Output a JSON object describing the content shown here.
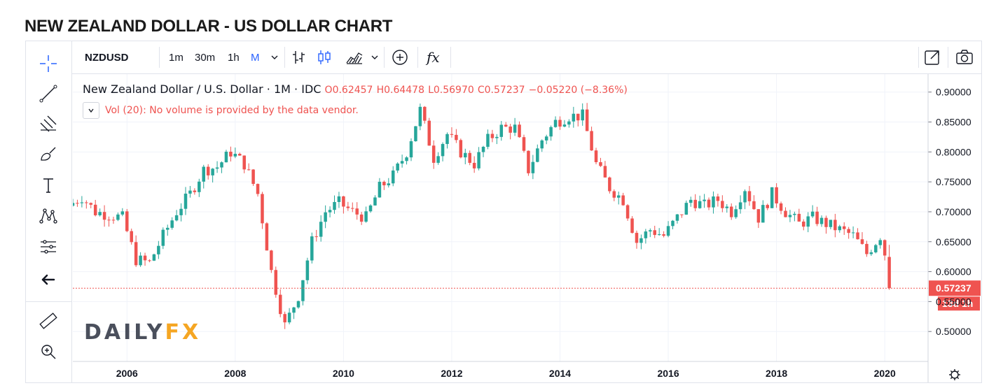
{
  "page": {
    "title": "NEW ZEALAND DOLLAR - US DOLLAR CHART"
  },
  "toolbar": {
    "symbol": "NZDUSD",
    "intervals": [
      "1m",
      "30m",
      "1h",
      "M"
    ],
    "active_interval": "M",
    "indicator_icon": "fx"
  },
  "legend": {
    "name": "New Zealand Dollar / U.S. Dollar",
    "interval": "1M",
    "source": "IDC",
    "open": "O0.62457",
    "high": "H0.64478",
    "low": "L0.56970",
    "close": "C0.57237",
    "change": "−0.05220 (−8.36%)",
    "dot": "·"
  },
  "volume": {
    "text": "Vol (20): No volume is provided by the data vendor."
  },
  "logo": {
    "part1": "DAILY",
    "part2": "FX"
  },
  "price_label": {
    "value": "0.57237",
    "countdown": "13d 1h",
    "color": "#ef5350"
  },
  "colors": {
    "up": "#26a69a",
    "down": "#ef5350",
    "grid": "#f0f3fa",
    "accent": "#2962ff"
  },
  "chart_data": {
    "type": "candlestick",
    "x_ticks": [
      "2006",
      "2008",
      "2010",
      "2012",
      "2014",
      "2016",
      "2018",
      "2020"
    ],
    "y_ticks": [
      "0.50000",
      "0.55000",
      "0.60000",
      "0.65000",
      "0.70000",
      "0.75000",
      "0.80000",
      "0.85000",
      "0.90000"
    ],
    "ylim": [
      0.45,
      0.93
    ],
    "xlim": [
      2005.0,
      2020.8
    ],
    "last_price": 0.57237,
    "monthly_close": [
      [
        2005.0,
        0.71
      ],
      [
        2005.25,
        0.725
      ],
      [
        2005.5,
        0.7
      ],
      [
        2005.75,
        0.695
      ],
      [
        2006.0,
        0.69
      ],
      [
        2006.25,
        0.62
      ],
      [
        2006.5,
        0.615
      ],
      [
        2006.75,
        0.66
      ],
      [
        2007.0,
        0.7
      ],
      [
        2007.25,
        0.73
      ],
      [
        2007.5,
        0.77
      ],
      [
        2007.75,
        0.775
      ],
      [
        2008.0,
        0.8
      ],
      [
        2008.25,
        0.78
      ],
      [
        2008.5,
        0.73
      ],
      [
        2008.75,
        0.6
      ],
      [
        2009.0,
        0.51
      ],
      [
        2009.25,
        0.56
      ],
      [
        2009.5,
        0.65
      ],
      [
        2009.75,
        0.7
      ],
      [
        2010.0,
        0.715
      ],
      [
        2010.25,
        0.7
      ],
      [
        2010.5,
        0.69
      ],
      [
        2010.75,
        0.74
      ],
      [
        2011.0,
        0.76
      ],
      [
        2011.25,
        0.8
      ],
      [
        2011.5,
        0.87
      ],
      [
        2011.75,
        0.79
      ],
      [
        2012.0,
        0.83
      ],
      [
        2012.25,
        0.8
      ],
      [
        2012.5,
        0.78
      ],
      [
        2012.75,
        0.82
      ],
      [
        2013.0,
        0.84
      ],
      [
        2013.25,
        0.84
      ],
      [
        2013.5,
        0.77
      ],
      [
        2013.75,
        0.82
      ],
      [
        2014.0,
        0.85
      ],
      [
        2014.25,
        0.86
      ],
      [
        2014.5,
        0.86
      ],
      [
        2014.75,
        0.78
      ],
      [
        2015.0,
        0.74
      ],
      [
        2015.25,
        0.72
      ],
      [
        2015.5,
        0.65
      ],
      [
        2015.75,
        0.67
      ],
      [
        2016.0,
        0.66
      ],
      [
        2016.25,
        0.69
      ],
      [
        2016.5,
        0.72
      ],
      [
        2016.75,
        0.71
      ],
      [
        2017.0,
        0.72
      ],
      [
        2017.25,
        0.7
      ],
      [
        2017.5,
        0.74
      ],
      [
        2017.75,
        0.69
      ],
      [
        2018.0,
        0.73
      ],
      [
        2018.25,
        0.7
      ],
      [
        2018.5,
        0.68
      ],
      [
        2018.75,
        0.69
      ],
      [
        2019.0,
        0.68
      ],
      [
        2019.25,
        0.67
      ],
      [
        2019.5,
        0.66
      ],
      [
        2019.75,
        0.63
      ],
      [
        2020.0,
        0.66
      ],
      [
        2020.1,
        0.62457
      ],
      [
        2020.2,
        0.57237
      ]
    ]
  }
}
